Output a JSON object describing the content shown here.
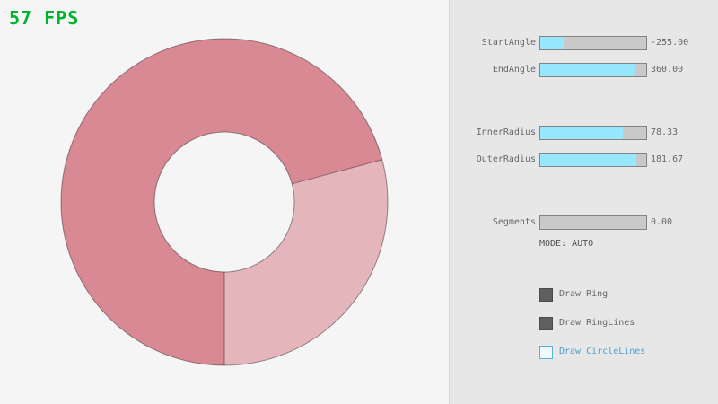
{
  "app": {
    "fps_label": "57 FPS"
  },
  "ring": {
    "dark_color": "#d98994",
    "light_color": "#e5b5bc",
    "line_color": "rgba(0,0,0,0.4)",
    "start_angle": -255.0,
    "end_angle": 360.0,
    "inner_radius": 78.33,
    "outer_radius": 181.67
  },
  "panel": {
    "sliders": [
      {
        "label": "StartAngle",
        "value": "-255.00",
        "fill_percent": 21.7
      },
      {
        "label": "EndAngle",
        "value": "360.00",
        "fill_percent": 90.0
      },
      {
        "label": "InnerRadius",
        "value": "78.33",
        "fill_percent": 78.3
      },
      {
        "label": "OuterRadius",
        "value": "181.67",
        "fill_percent": 90.8
      },
      {
        "label": "Segments",
        "value": "0.00",
        "fill_percent": 0
      }
    ],
    "mode_text": "MODE: AUTO",
    "checkboxes": [
      {
        "label": "Draw Ring",
        "checked": true
      },
      {
        "label": "Draw RingLines",
        "checked": true
      },
      {
        "label": "Draw CircleLines",
        "checked": false
      }
    ]
  },
  "colors": {
    "canvas_background": "#f5f5f5",
    "panel_background": "#e7e7e7",
    "fps_green": "#00b42e",
    "slider_fill": "#97e8ff",
    "slider_track": "#c9c9c9",
    "slider_border": "#838383",
    "label_text": "#686868",
    "checkbox_checked": "#5f5f5f",
    "focus_blue_border": "#5bb2d9",
    "focus_blue_text": "#4f9fcc"
  }
}
